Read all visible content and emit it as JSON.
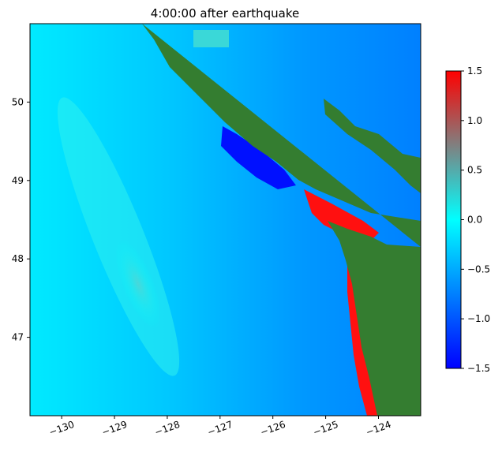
{
  "chart_data": {
    "type": "heatmap",
    "title": "4:00:00 after earthquake",
    "xlabel": "",
    "ylabel": "",
    "xlim": [
      -130.6,
      -123.2
    ],
    "ylim": [
      46.0,
      51.0
    ],
    "x_ticks": [
      -130,
      -129,
      -128,
      -127,
      -126,
      -125,
      -124
    ],
    "x_tick_labels": [
      "−130",
      "−129",
      "−128",
      "−127",
      "−126",
      "−125",
      "−124"
    ],
    "y_ticks": [
      47,
      48,
      49,
      50
    ],
    "y_tick_labels": [
      "47",
      "48",
      "49",
      "50"
    ],
    "colorbar": {
      "range": [
        -1.5,
        1.5
      ],
      "ticks": [
        -1.5,
        -1.0,
        -0.5,
        0.0,
        0.5,
        1.0,
        1.5
      ],
      "tick_labels": [
        "−1.5",
        "−1.0",
        "−0.5",
        "0.0",
        "0.5",
        "1.0",
        "1.5"
      ],
      "colormap": [
        {
          "value": -1.5,
          "color": "#0000ff"
        },
        {
          "value": -0.75,
          "color": "#0080ff"
        },
        {
          "value": 0.0,
          "color": "#00ffff"
        },
        {
          "value": 0.75,
          "color": "#808080"
        },
        {
          "value": 1.5,
          "color": "#ff0000"
        }
      ]
    },
    "land_color": "#347d30",
    "grid": false
  }
}
